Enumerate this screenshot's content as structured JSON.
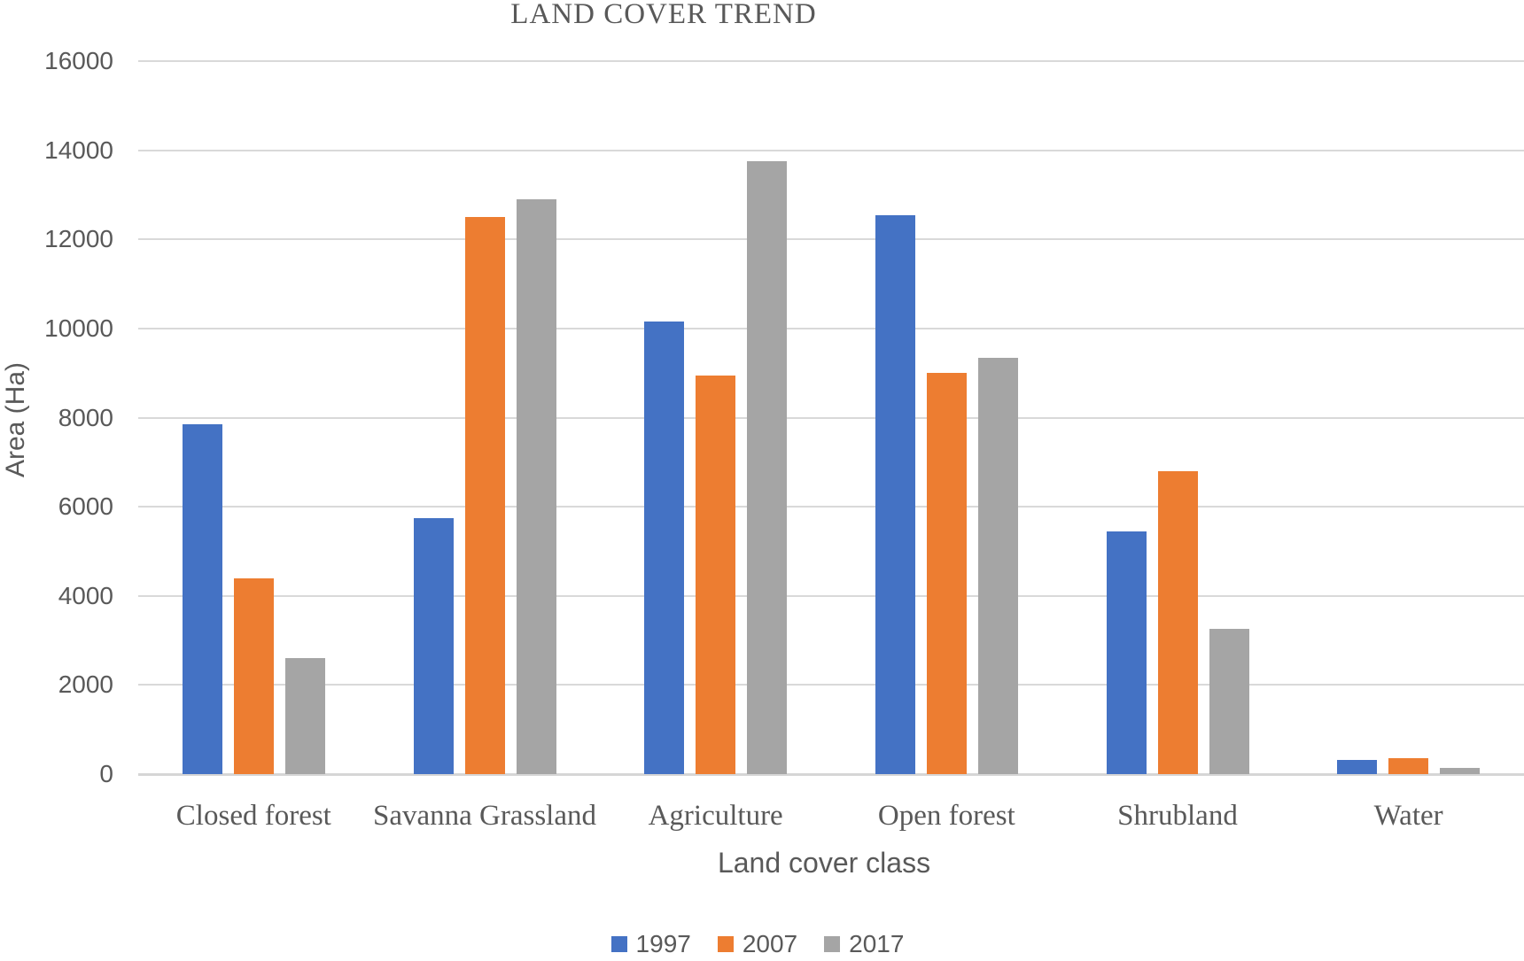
{
  "chart_data": {
    "type": "bar",
    "title": "LAND COVER TREND",
    "xlabel": "Land cover class",
    "ylabel": "Area (Ha)",
    "categories": [
      "Closed forest",
      "Savanna Grassland",
      "Agriculture",
      "Open forest",
      "Shrubland",
      "Water"
    ],
    "series": [
      {
        "name": "1997",
        "color": "#4472C4",
        "values": [
          7850,
          5750,
          10150,
          12550,
          5450,
          320
        ]
      },
      {
        "name": "2007",
        "color": "#ED7D31",
        "values": [
          4400,
          12500,
          8950,
          9000,
          6800,
          350
        ]
      },
      {
        "name": "2017",
        "color": "#A5A5A5",
        "values": [
          2600,
          12900,
          13750,
          9350,
          3250,
          140
        ]
      }
    ],
    "ylim": [
      0,
      16000
    ],
    "yticks": [
      0,
      2000,
      4000,
      6000,
      8000,
      10000,
      12000,
      14000,
      16000
    ],
    "grid": true,
    "legend_position": "bottom",
    "gridline_color": "#D9D9D9",
    "text_color": "#595959"
  }
}
